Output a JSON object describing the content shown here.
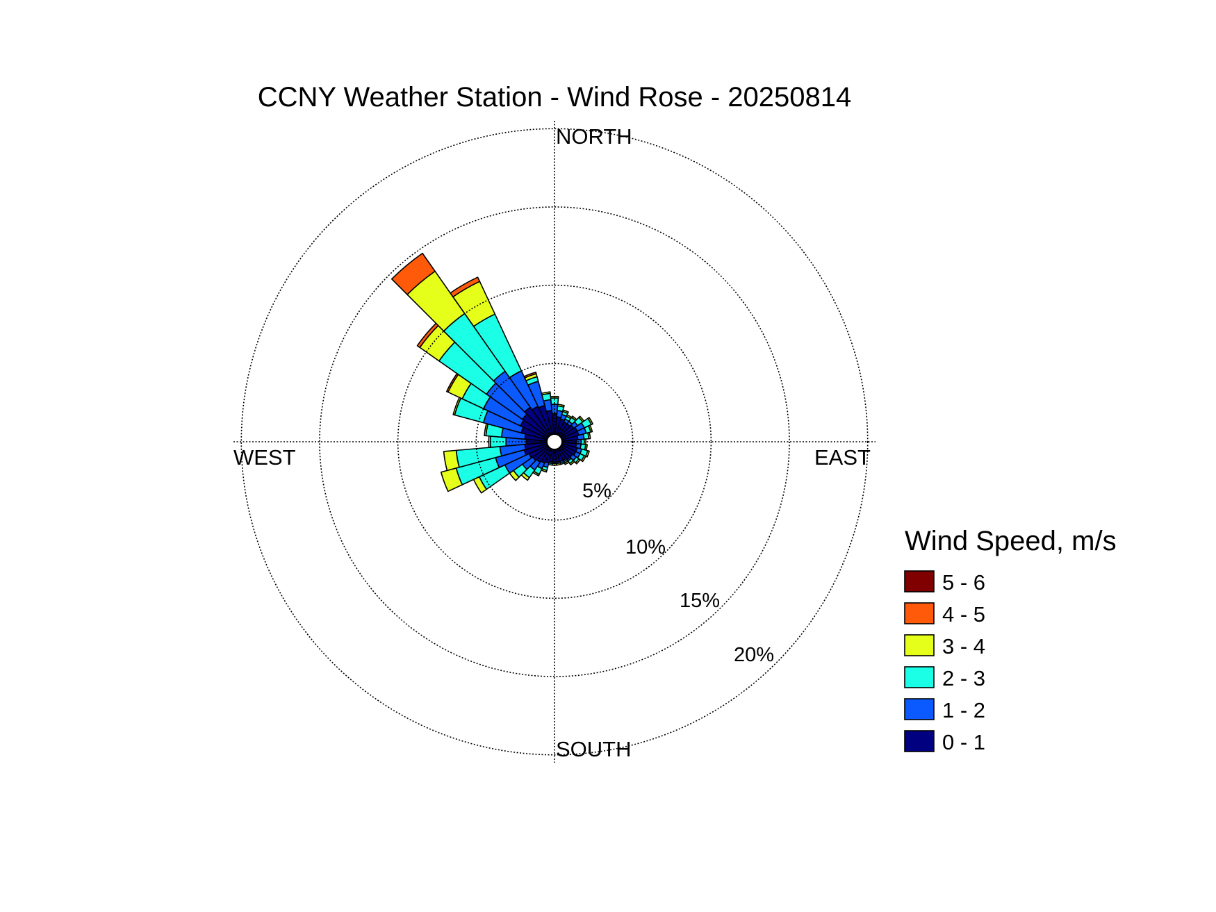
{
  "chart_data": {
    "type": "wind_rose",
    "title": "CCNY Weather Station - Wind Rose - 20250814",
    "directions": {
      "north": "NORTH",
      "east": "EAST",
      "south": "SOUTH",
      "west": "WEST"
    },
    "ring_values": [
      5,
      10,
      15,
      20
    ],
    "ring_labels": [
      "5%",
      "10%",
      "15%",
      "20%"
    ],
    "r_max": 20.5,
    "calm_circle_percent": 0.5,
    "legend": {
      "title": "Wind Speed, m/s",
      "entries": [
        {
          "label": "5 - 6",
          "color": "#800000"
        },
        {
          "label": "4 - 5",
          "color": "#ff5a0a"
        },
        {
          "label": "3 - 4",
          "color": "#e6ff1a"
        },
        {
          "label": "2 - 3",
          "color": "#1affe6"
        },
        {
          "label": "1 - 2",
          "color": "#0a5aff"
        },
        {
          "label": "0 - 1",
          "color": "#000080"
        }
      ]
    },
    "bin_labels": [
      "0 - 1",
      "1 - 2",
      "2 - 3",
      "3 - 4",
      "4 - 5",
      "5 - 6"
    ],
    "bin_colors": [
      "#000080",
      "#0a5aff",
      "#1affe6",
      "#e6ff1a",
      "#ff5a0a",
      "#800000"
    ],
    "sector_width_deg": 10,
    "sectors": [
      {
        "direction_deg": 0,
        "cumulative_percent": [
          1.3,
          1.9,
          2.3,
          2.4,
          2.4,
          2.4
        ]
      },
      {
        "direction_deg": 10,
        "cumulative_percent": [
          1.1,
          1.5,
          1.8,
          1.9,
          1.9,
          1.9
        ]
      },
      {
        "direction_deg": 20,
        "cumulative_percent": [
          1.0,
          1.3,
          1.5,
          1.6,
          1.6,
          1.6
        ]
      },
      {
        "direction_deg": 30,
        "cumulative_percent": [
          0.9,
          1.1,
          1.3,
          1.4,
          1.4,
          1.4
        ]
      },
      {
        "direction_deg": 40,
        "cumulative_percent": [
          0.9,
          1.1,
          1.4,
          1.5,
          1.5,
          1.5
        ]
      },
      {
        "direction_deg": 50,
        "cumulative_percent": [
          1.0,
          1.3,
          1.7,
          1.8,
          1.8,
          1.8
        ]
      },
      {
        "direction_deg": 60,
        "cumulative_percent": [
          1.1,
          1.6,
          2.1,
          2.2,
          2.2,
          2.2
        ]
      },
      {
        "direction_deg": 70,
        "cumulative_percent": [
          1.1,
          1.6,
          1.9,
          2.0,
          2.0,
          2.0
        ]
      },
      {
        "direction_deg": 80,
        "cumulative_percent": [
          1.0,
          1.4,
          1.7,
          1.8,
          1.8,
          1.8
        ]
      },
      {
        "direction_deg": 90,
        "cumulative_percent": [
          0.9,
          1.2,
          1.4,
          1.5,
          1.5,
          1.5
        ]
      },
      {
        "direction_deg": 100,
        "cumulative_percent": [
          0.9,
          1.2,
          1.5,
          1.6,
          1.6,
          1.6
        ]
      },
      {
        "direction_deg": 110,
        "cumulative_percent": [
          1.0,
          1.3,
          1.7,
          1.8,
          1.8,
          1.8
        ]
      },
      {
        "direction_deg": 120,
        "cumulative_percent": [
          1.0,
          1.3,
          1.6,
          1.7,
          1.7,
          1.7
        ]
      },
      {
        "direction_deg": 130,
        "cumulative_percent": [
          0.9,
          1.2,
          1.4,
          1.5,
          1.5,
          1.5
        ]
      },
      {
        "direction_deg": 140,
        "cumulative_percent": [
          0.9,
          1.0,
          1.2,
          1.3,
          1.3,
          1.3
        ]
      },
      {
        "direction_deg": 150,
        "cumulative_percent": [
          0.8,
          0.9,
          1.0,
          1.1,
          1.1,
          1.1
        ]
      },
      {
        "direction_deg": 160,
        "cumulative_percent": [
          0.8,
          0.9,
          1.0,
          1.0,
          1.0,
          1.0
        ]
      },
      {
        "direction_deg": 170,
        "cumulative_percent": [
          0.8,
          0.9,
          0.9,
          1.0,
          1.0,
          1.0
        ]
      },
      {
        "direction_deg": 180,
        "cumulative_percent": [
          0.8,
          0.9,
          0.9,
          1.0,
          1.0,
          1.0
        ]
      },
      {
        "direction_deg": 190,
        "cumulative_percent": [
          0.8,
          0.9,
          1.0,
          1.0,
          1.0,
          1.0
        ]
      },
      {
        "direction_deg": 200,
        "cumulative_percent": [
          0.9,
          1.2,
          1.4,
          1.5,
          1.5,
          1.5
        ]
      },
      {
        "direction_deg": 210,
        "cumulative_percent": [
          1.0,
          1.4,
          1.8,
          1.9,
          1.9,
          1.9
        ]
      },
      {
        "direction_deg": 220,
        "cumulative_percent": [
          1.1,
          1.7,
          2.3,
          2.5,
          2.5,
          2.5
        ]
      },
      {
        "direction_deg": 230,
        "cumulative_percent": [
          1.2,
          2.0,
          2.7,
          3.0,
          3.0,
          3.0
        ]
      },
      {
        "direction_deg": 240,
        "cumulative_percent": [
          1.3,
          3.0,
          4.8,
          5.2,
          5.2,
          5.2
        ]
      },
      {
        "direction_deg": 250,
        "cumulative_percent": [
          1.5,
          3.4,
          6.0,
          7.0,
          7.0,
          7.0
        ]
      },
      {
        "direction_deg": 260,
        "cumulative_percent": [
          1.4,
          3.0,
          5.8,
          6.6,
          6.6,
          6.6
        ]
      },
      {
        "direction_deg": 270,
        "cumulative_percent": [
          1.3,
          2.6,
          3.6,
          3.7,
          3.7,
          3.7
        ]
      },
      {
        "direction_deg": 280,
        "cumulative_percent": [
          1.4,
          2.9,
          3.9,
          4.0,
          4.0,
          4.0
        ]
      },
      {
        "direction_deg": 290,
        "cumulative_percent": [
          1.7,
          4.2,
          6.1,
          6.2,
          6.2,
          6.2
        ]
      },
      {
        "direction_deg": 300,
        "cumulative_percent": [
          1.9,
          4.5,
          6.0,
          7.0,
          7.1,
          7.1
        ]
      },
      {
        "direction_deg": 310,
        "cumulative_percent": [
          2.0,
          4.8,
          8.5,
          10.0,
          10.2,
          10.2
        ]
      },
      {
        "direction_deg": 320,
        "cumulative_percent": [
          2.2,
          5.0,
          9.5,
          12.8,
          14.2,
          14.2
        ]
      },
      {
        "direction_deg": 330,
        "cumulative_percent": [
          2.0,
          4.5,
          8.5,
          10.8,
          11.1,
          11.1
        ]
      },
      {
        "direction_deg": 340,
        "cumulative_percent": [
          1.9,
          3.5,
          3.8,
          4.0,
          4.1,
          4.1
        ]
      },
      {
        "direction_deg": 350,
        "cumulative_percent": [
          1.5,
          2.2,
          2.6,
          2.7,
          2.7,
          2.7
        ]
      }
    ]
  }
}
